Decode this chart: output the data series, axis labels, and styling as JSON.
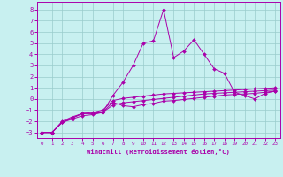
{
  "xlabel": "Windchill (Refroidissement éolien,°C)",
  "xlim": [
    -0.5,
    23.5
  ],
  "ylim": [
    -3.5,
    8.7
  ],
  "yticks": [
    -3,
    -2,
    -1,
    0,
    1,
    2,
    3,
    4,
    5,
    6,
    7,
    8
  ],
  "xticks": [
    0,
    1,
    2,
    3,
    4,
    5,
    6,
    7,
    8,
    9,
    10,
    11,
    12,
    13,
    14,
    15,
    16,
    17,
    18,
    19,
    20,
    21,
    22,
    23
  ],
  "background_color": "#c8f0f0",
  "line_color": "#aa00aa",
  "grid_color": "#99cccc",
  "series": [
    [
      -3,
      -3,
      -2.1,
      -1.7,
      -1.3,
      -1.3,
      -1.2,
      0.3,
      1.5,
      3.0,
      5.0,
      5.2,
      8.0,
      3.7,
      4.3,
      5.3,
      4.0,
      2.7,
      2.3,
      0.6,
      0.3,
      0.0,
      0.5,
      0.7
    ],
    [
      -3,
      -3,
      -2.1,
      -1.7,
      -1.3,
      -1.3,
      -1.2,
      -0.3,
      -0.6,
      -0.7,
      -0.5,
      -0.4,
      -0.2,
      -0.15,
      -0.05,
      0.05,
      0.15,
      0.25,
      0.35,
      0.4,
      0.45,
      0.5,
      0.6,
      0.7
    ],
    [
      -3,
      -3,
      -2.1,
      -1.8,
      -1.5,
      -1.4,
      -1.2,
      -0.55,
      -0.35,
      -0.25,
      -0.15,
      -0.05,
      0.05,
      0.15,
      0.25,
      0.35,
      0.45,
      0.5,
      0.55,
      0.6,
      0.65,
      0.7,
      0.75,
      0.8
    ],
    [
      -3,
      -3,
      -2.0,
      -1.6,
      -1.3,
      -1.2,
      -1.0,
      -0.15,
      0.05,
      0.15,
      0.25,
      0.35,
      0.45,
      0.5,
      0.55,
      0.6,
      0.65,
      0.7,
      0.75,
      0.8,
      0.85,
      0.9,
      0.95,
      1.0
    ]
  ]
}
